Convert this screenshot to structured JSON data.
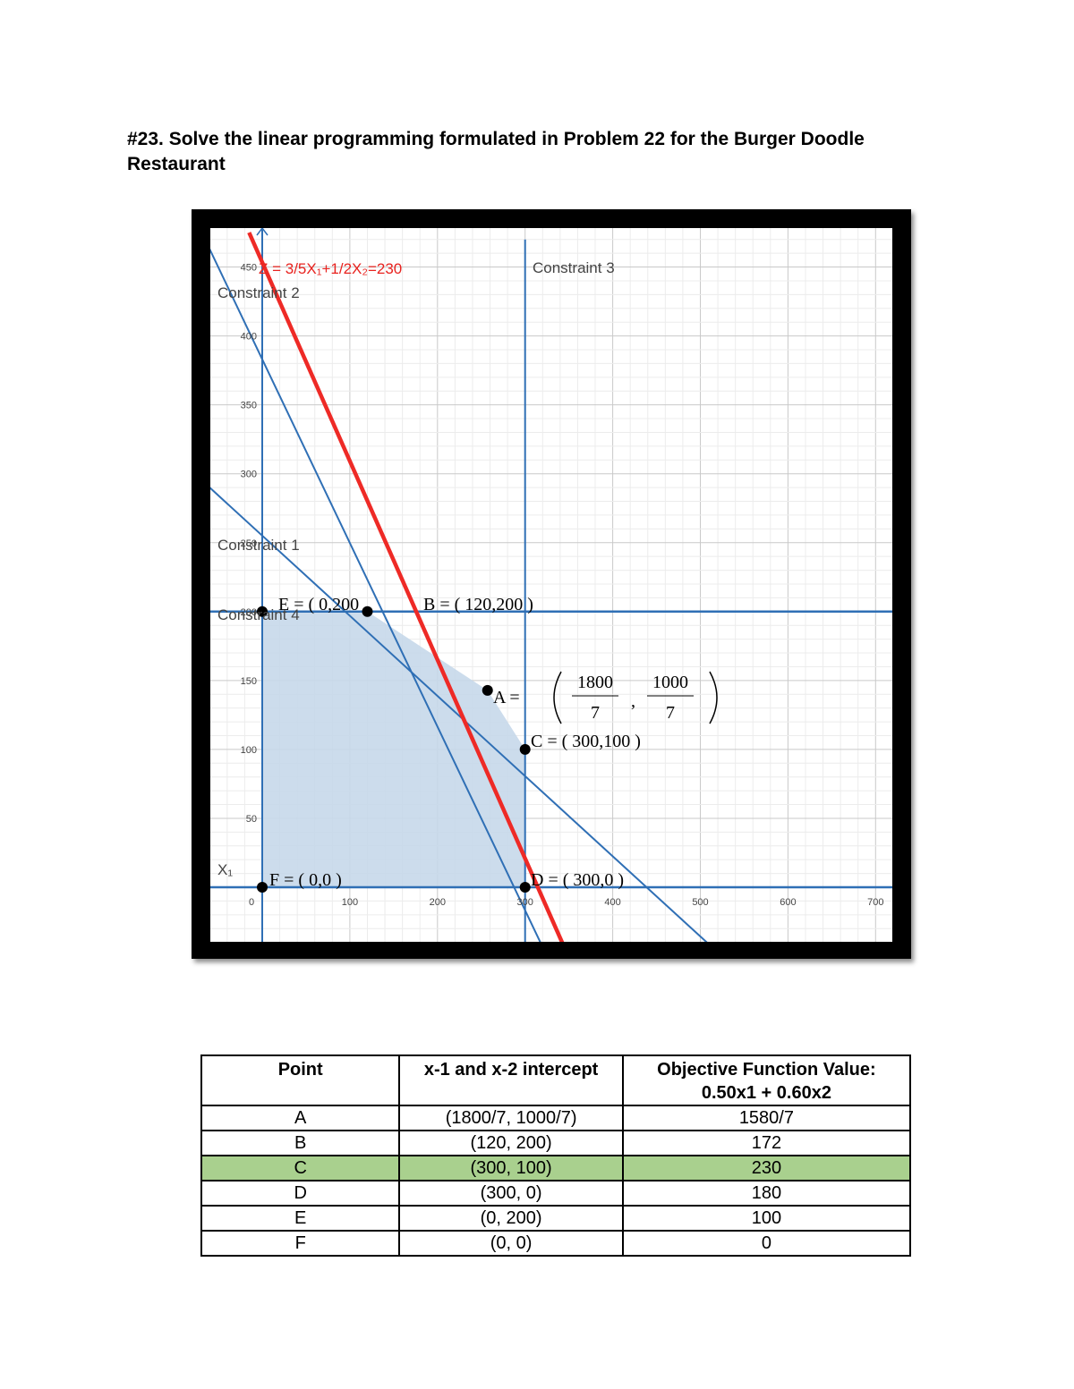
{
  "heading": "#23. Solve the linear programming formulated in Problem 22 for the Burger Doodle Restaurant",
  "chart_data": {
    "type": "line",
    "x_ticks": [
      "0",
      "100",
      "200",
      "300",
      "400",
      "500",
      "600",
      "700"
    ],
    "y_ticks": [
      "50",
      "100",
      "150",
      "200",
      "250",
      "300",
      "350",
      "400",
      "450"
    ],
    "x_axis_label": "X₁",
    "xlim": [
      -60,
      720
    ],
    "ylim": [
      -155,
      475
    ],
    "grid": true,
    "colors": {
      "constraint": "#2f6fb5",
      "objective": "#ee2a26",
      "feasible": "#c6d8ea"
    },
    "objective_label": "Z = 3/5X₁+1/2X₂=230",
    "constraints": [
      {
        "label": "Constraint 1",
        "line": [
          [
            -60,
            290
          ],
          [
            700,
            -152
          ]
        ]
      },
      {
        "label": "Constraint 2",
        "line": [
          [
            -60,
            463
          ],
          [
            400,
            -150
          ]
        ]
      },
      {
        "label": "Constraint 3",
        "line": [
          [
            300,
            -155
          ],
          [
            300,
            470
          ]
        ]
      },
      {
        "label": "Constraint 4",
        "line": [
          [
            -60,
            200
          ],
          [
            720,
            200
          ]
        ]
      }
    ],
    "objective_line": [
      [
        -15,
        475
      ],
      [
        422,
        -155
      ]
    ],
    "feasible_region": [
      [
        0,
        0
      ],
      [
        0,
        200
      ],
      [
        120,
        200
      ],
      [
        257.14,
        142.86
      ],
      [
        300,
        100
      ],
      [
        300,
        0
      ]
    ],
    "points": [
      {
        "name": "A",
        "x": 257.14,
        "y": 142.86,
        "label": "A =",
        "frac_num1": "1800",
        "frac_den1": "7",
        "frac_num2": "1000",
        "frac_den2": "7"
      },
      {
        "name": "B",
        "x": 120,
        "y": 200,
        "label": "B = ( 120,200 )"
      },
      {
        "name": "C",
        "x": 300,
        "y": 100,
        "label": "C = ( 300,100 )"
      },
      {
        "name": "D",
        "x": 300,
        "y": 0,
        "label": "D = ( 300,0 )"
      },
      {
        "name": "E",
        "x": 0,
        "y": 200,
        "label": "E = ( 0,200"
      },
      {
        "name": "F",
        "x": 0,
        "y": 0,
        "label": "F = ( 0,0 )"
      }
    ]
  },
  "table": {
    "headers": [
      "Point",
      "x-1 and x-2 intercept",
      "Objective Function Value: 0.50x1 + 0.60x2"
    ],
    "rows": [
      [
        "A",
        "(1800/7, 1000/7)",
        "1580/7"
      ],
      [
        "B",
        "(120, 200)",
        "172"
      ],
      [
        "C",
        "(300, 100)",
        "230"
      ],
      [
        "D",
        "(300, 0)",
        "180"
      ],
      [
        "E",
        "(0, 200)",
        "100"
      ],
      [
        "F",
        "(0, 0)",
        "0"
      ]
    ],
    "highlight_row": 2
  }
}
